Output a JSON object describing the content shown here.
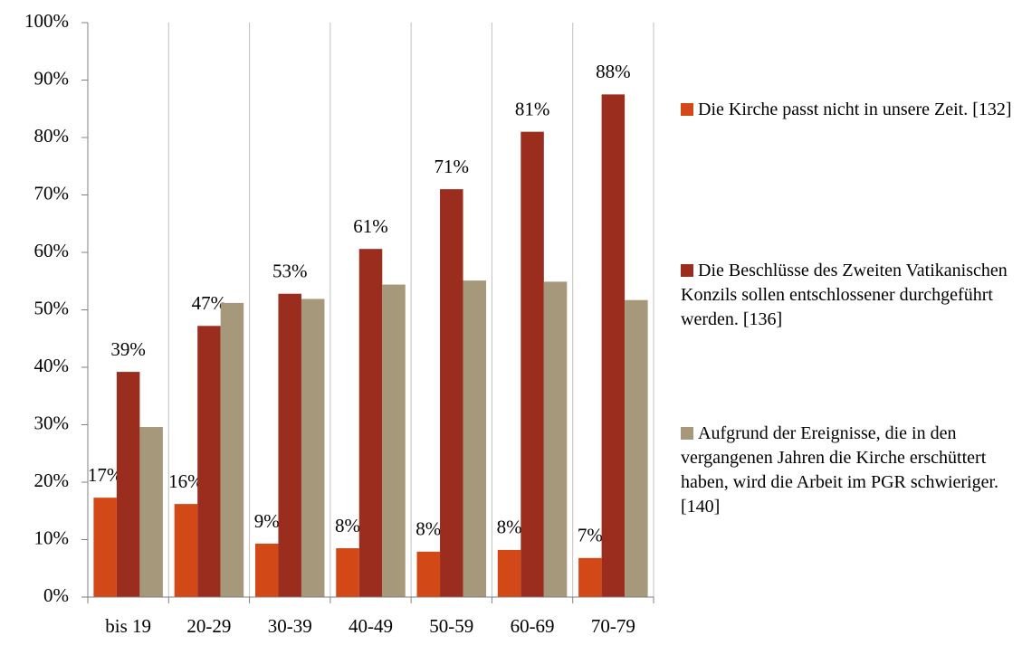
{
  "chart_data": {
    "type": "bar",
    "categories": [
      "bis 19",
      "20-29",
      "30-39",
      "40-49",
      "50-59",
      "60-69",
      "70-79"
    ],
    "series": [
      {
        "name": "Die Kirche passt nicht in unsere Zeit. [132]",
        "color": "#d34817",
        "values": [
          17.3,
          16.2,
          9.3,
          8.5,
          7.9,
          8.2,
          6.8
        ],
        "value_labels": [
          "17%",
          "16%",
          "9%",
          "8%",
          "8%",
          "8%",
          "7%"
        ]
      },
      {
        "name": "Die Beschlüsse des Zweiten Vatikanischen Konzils sollen entschlossener durchgeführt werden. [136]",
        "color": "#9b2d1f",
        "values": [
          39.2,
          47.2,
          52.8,
          60.6,
          71.0,
          81.0,
          87.5
        ],
        "value_labels": [
          "39%",
          "47%",
          "53%",
          "61%",
          "71%",
          "81%",
          "88%"
        ]
      },
      {
        "name": "Aufgrund der Ereignisse, die in den vergangenen Jahren die Kirche erschüttert haben, wird die Arbeit im PGR schwieriger. [140]",
        "color": "#a5987b",
        "values": [
          29.6,
          51.2,
          51.9,
          54.4,
          55.1,
          54.9,
          51.7
        ]
      }
    ],
    "ylim": [
      0,
      100
    ],
    "yticks": [
      {
        "value": 0,
        "label": "0%"
      },
      {
        "value": 10,
        "label": "10%"
      },
      {
        "value": 20,
        "label": "20%"
      },
      {
        "value": 30,
        "label": "30%"
      },
      {
        "value": 40,
        "label": "40%"
      },
      {
        "value": 50,
        "label": "50%"
      },
      {
        "value": 60,
        "label": "60%"
      },
      {
        "value": 70,
        "label": "70%"
      },
      {
        "value": 80,
        "label": "80%"
      },
      {
        "value": 90,
        "label": "90%"
      },
      {
        "value": 100,
        "label": "100%"
      }
    ],
    "grid": true,
    "legend": "right"
  }
}
